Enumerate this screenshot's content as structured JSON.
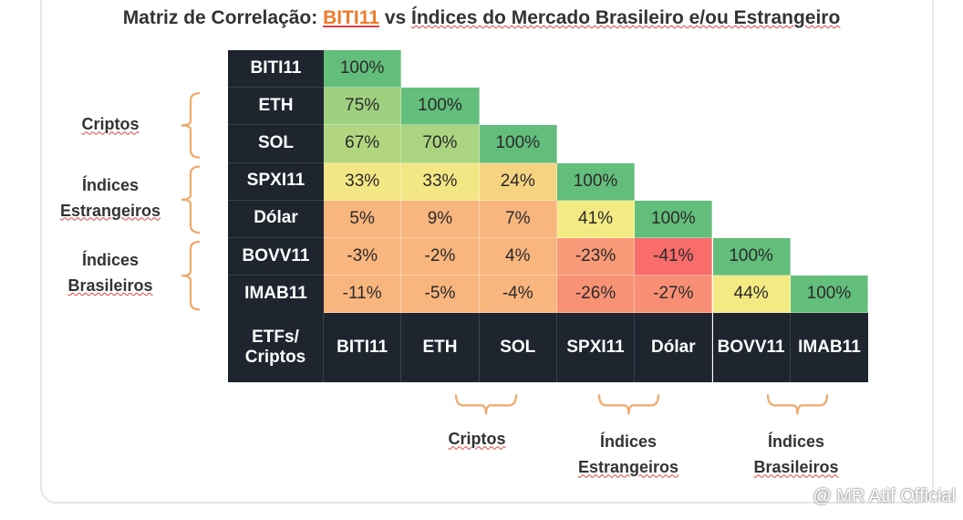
{
  "title": {
    "prefix": "Matriz de Correlação:",
    "highlight": "BITI11",
    "middle": "vs",
    "suffix": "Índices do Mercado Brasileiro e/ou Estrangeiro"
  },
  "chart_data": {
    "type": "heatmap",
    "corner_label_line1": "ETFs/",
    "corner_label_line2": "Criptos",
    "rows": [
      "BITI11",
      "ETH",
      "SOL",
      "SPXI11",
      "Dólar",
      "BOVV11",
      "IMAB11"
    ],
    "columns": [
      "BITI11",
      "ETH",
      "SOL",
      "SPXI11",
      "Dólar",
      "BOVV11",
      "IMAB11"
    ],
    "values": [
      [
        100
      ],
      [
        75,
        100
      ],
      [
        67,
        70,
        100
      ],
      [
        33,
        33,
        24,
        100
      ],
      [
        5,
        9,
        7,
        41,
        100
      ],
      [
        -3,
        -2,
        4,
        -23,
        -41,
        100
      ],
      [
        -11,
        -5,
        -4,
        -26,
        -27,
        44,
        100
      ]
    ],
    "value_suffix": "%",
    "matrix_shape": "lower-triangular",
    "color_scale": {
      "high": "#63be7b",
      "mid": "#f3ea84",
      "neutral": "#f8b57e",
      "low": "#f8696b"
    },
    "left_groups": [
      {
        "lines": [
          "Criptos"
        ]
      },
      {
        "lines": [
          "Índices",
          "Estrangeiros"
        ]
      },
      {
        "lines": [
          "Índices",
          "Brasileiros"
        ]
      }
    ],
    "bottom_groups": [
      {
        "lines": [
          "Criptos"
        ]
      },
      {
        "lines": [
          "Índices",
          "Estrangeiros"
        ]
      },
      {
        "lines": [
          "Índices",
          "Brasileiros"
        ]
      }
    ]
  },
  "watermark": "@ MR Atif Official",
  "colors": {
    "header_bg": "#1f252f",
    "brace": "#f0a868",
    "accent": "#f07a2a"
  }
}
